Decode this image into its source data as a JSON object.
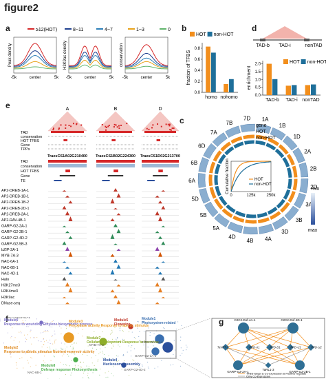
{
  "figure_title": "figure2",
  "panels": {
    "a": {
      "label": "a",
      "legend": [
        "≥12(HOT)",
        "8~11",
        "4~7",
        "1~3",
        "0"
      ],
      "legend_colors": [
        "#d62728",
        "#1f3f8f",
        "#2c7fb8",
        "#e8a21a",
        "#5fb46b"
      ],
      "ylabels": [
        "Peak density",
        "H3K9ac density",
        "conservation"
      ],
      "xticks": [
        "-5k",
        "center",
        "5k"
      ]
    },
    "b": {
      "label": "b",
      "legend": [
        "HOT",
        "non-HOT"
      ],
      "ylabel": "fraction of TFBS",
      "yticks": [
        "0.0",
        "0.2",
        "0.4",
        "0.6",
        "0.8"
      ],
      "categories": [
        "homo",
        "nohomo"
      ]
    },
    "c": {
      "label": "c",
      "chromosomes": [
        "1A",
        "1B",
        "1D",
        "2A",
        "2B",
        "2D",
        "3A",
        "3B",
        "3D",
        "4A",
        "4B",
        "4D",
        "5A",
        "5B",
        "5D",
        "6A",
        "6B",
        "6D",
        "7A",
        "7B",
        "7D"
      ],
      "track_labels": [
        "gene",
        "HOT",
        "non-HOT"
      ],
      "inset_ylabel": "Cumulative fraction",
      "inset_xticks": [
        "0",
        "125k",
        "250k"
      ],
      "inset_legend": [
        "HOT",
        "non-HOT"
      ],
      "scale": [
        "min",
        "max"
      ]
    },
    "d": {
      "label": "d",
      "top_labels": [
        "TAD-b",
        "TAD-i",
        "nonTAD"
      ],
      "legend": [
        "HOT",
        "non-HOT"
      ],
      "ylabel": "enrichment",
      "yticks": [
        "0.0",
        "0.5",
        "1.0",
        "1.5",
        "2.0"
      ],
      "categories": [
        "TAD-b",
        "TAD-i",
        "nonTAD"
      ]
    },
    "e": {
      "label": "e",
      "loci": [
        "A",
        "B",
        "D"
      ],
      "top_tracks": [
        "TAD",
        "conservation",
        "HOT TFBS",
        "Gene",
        "TPPs"
      ],
      "gene_names": [
        "TraesCS1A02G210400",
        "TraesCS1B02G224300",
        "TraesCS1D02G213700"
      ],
      "mid_tracks": [
        "TAD",
        "conservation",
        "HOT TFBS",
        "Gene",
        "TE"
      ],
      "tf_tracks": [
        "AP2-DREB-1A-1",
        "AP2-DREB-1B-1",
        "AP2-DREB-1B-2",
        "AP2-DREB-2D-1",
        "AP2-DREB-2A-1",
        "AP2-RAV-4B-1",
        "GARP-G2-2A-1",
        "GARP-G2-2B-1",
        "GARP-G2-4D-2",
        "GARP-G2-5B-3",
        "bZIP-2A-1",
        "MYB-7A-3",
        "NAC-6A-1",
        "NAC-6B-1",
        "NAC-4D-1",
        "Halo",
        "H3K27me3",
        "H3K4me3",
        "H3K9ac",
        "DNase-seq"
      ]
    },
    "f": {
      "label": "f",
      "modules": [
        {
          "id": "m6",
          "text": "Module6 Response to wounding Ethylene biosynthetic process",
          "color": "#7a6fc4"
        },
        {
          "id": "m3",
          "text": "Module3 Peroxidase activity Response to abiotic stimulus",
          "color": "#e89a24"
        },
        {
          "id": "m5",
          "text": "Module5 Flowering",
          "color": "#c0392b"
        },
        {
          "id": "m1",
          "text": "Module1 Photosystem-related",
          "color": "#3a6fb0"
        },
        {
          "id": "m7",
          "text": "Module7 Cellular development Response to hormone",
          "color": "#8fae2a"
        },
        {
          "id": "m2",
          "text": "Module2 Response to abiotic stimulus Nutrient reservoir activity",
          "color": "#e08a1e"
        },
        {
          "id": "m4",
          "text": "Module4 Nucleosome assembly",
          "color": "#2b4f9c"
        },
        {
          "id": "m8",
          "text": "Module8 Defense response Photosynthesis",
          "color": "#4cae4c"
        }
      ],
      "node_labels": [
        "MYB-7A-3",
        "C2C2-Dof-4A-1",
        "GARP-G2-2A-1",
        "GARP-G2-4D-2",
        "NAC-6B-1",
        "AP2-DREB-5D-1"
      ]
    },
    "g": {
      "label": "g",
      "nodes_top": [
        "C2C2-Dof-4A-1",
        "C2C2-Dof-4D-1"
      ],
      "nodes_mid": [
        "TaVRT-2",
        "PPD-A1",
        "PPD-D1",
        "PPD-U1",
        "PPD-U2"
      ],
      "nodes_bottom": [
        "GARP-G2-2A-1",
        "TaRL1-3",
        "GARP-G2-2B-1"
      ],
      "legend": [
        "TFBS-target & Co-expression & Positive-regulate",
        "Only Co-expression"
      ]
    }
  },
  "colors": {
    "hot": "#f28e1c",
    "nonhot": "#1f6f9a",
    "red": "#d62728"
  },
  "chart_data": [
    {
      "type": "bar",
      "panel": "b",
      "categories": [
        "homo",
        "nohomo"
      ],
      "series": [
        {
          "name": "HOT",
          "values": [
            0.83,
            0.15
          ]
        },
        {
          "name": "non-HOT",
          "values": [
            0.72,
            0.24
          ]
        }
      ],
      "ylabel": "fraction of TFBS",
      "ylim": [
        0,
        0.9
      ]
    },
    {
      "type": "bar",
      "panel": "d",
      "categories": [
        "TAD-b",
        "TAD-i",
        "nonTAD"
      ],
      "series": [
        {
          "name": "HOT",
          "values": [
            2.0,
            0.6,
            0.64
          ]
        },
        {
          "name": "non-HOT",
          "values": [
            1.02,
            0.64,
            0.68
          ]
        }
      ],
      "ylabel": "enrichment",
      "ylim": [
        0,
        2.2
      ]
    }
  ]
}
